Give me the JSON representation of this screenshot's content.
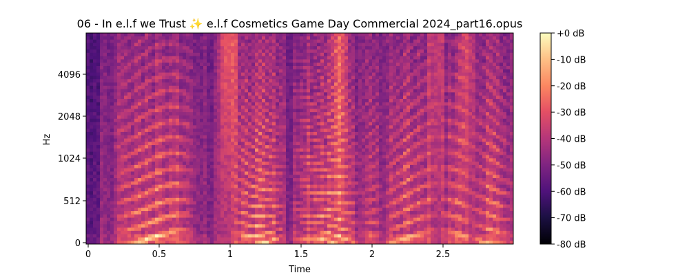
{
  "chart_data": {
    "type": "heatmap",
    "title": "06 - In e.l.f we Trust ✨ e.l.f Cosmetics Game Day Commercial 2024_part16.opus",
    "xlabel": "Time",
    "ylabel": "Hz",
    "x_ticks": [
      {
        "value": 0,
        "label": "0"
      },
      {
        "value": 0.5,
        "label": "0.5"
      },
      {
        "value": 1,
        "label": "1"
      },
      {
        "value": 1.5,
        "label": "1.5"
      },
      {
        "value": 2,
        "label": "2"
      },
      {
        "value": 2.5,
        "label": "2.5"
      }
    ],
    "y_scale": "log2",
    "y_ticks": [
      {
        "value": 0,
        "label": "0"
      },
      {
        "value": 512,
        "label": "512"
      },
      {
        "value": 1024,
        "label": "1024"
      },
      {
        "value": 2048,
        "label": "2048"
      },
      {
        "value": 4096,
        "label": "4096"
      }
    ],
    "xlim": [
      0,
      3.0
    ],
    "colorbar": {
      "colormap": "magma",
      "range_db": [
        -80,
        0
      ],
      "ticks": [
        {
          "value": 0,
          "label": "+0 dB"
        },
        {
          "value": -10,
          "label": "-10 dB"
        },
        {
          "value": -20,
          "label": "-20 dB"
        },
        {
          "value": -30,
          "label": "-30 dB"
        },
        {
          "value": -40,
          "label": "-40 dB"
        },
        {
          "value": -50,
          "label": "-50 dB"
        },
        {
          "value": -60,
          "label": "-60 dB"
        },
        {
          "value": -70,
          "label": "-70 dB"
        },
        {
          "value": -80,
          "label": "-80 dB"
        }
      ]
    }
  }
}
